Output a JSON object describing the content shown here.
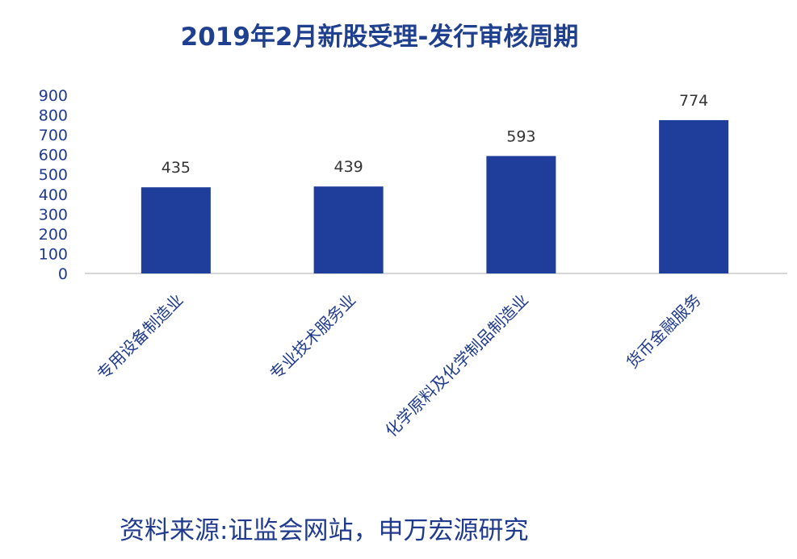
{
  "chart_data": {
    "type": "bar",
    "title": "2019年2月新股受理-发行审核周期",
    "categories": [
      "专用设备制造业",
      "专业技术服务业",
      "化学原料及化学制品制造业",
      "货币金融服务"
    ],
    "values": [
      435,
      439,
      593,
      774
    ],
    "ylim": [
      0,
      900
    ],
    "yticks": [
      0,
      100,
      200,
      300,
      400,
      500,
      600,
      700,
      800,
      900
    ],
    "xlabel": "",
    "ylabel": "",
    "grid": false,
    "legend": "none",
    "data_labels": true,
    "x_label_rotation": "-45deg"
  },
  "source_note": "资料来源:证监会网站，申万宏源研究",
  "colors": {
    "bar": "#1f3d9b",
    "title": "#1f3f8f",
    "axis_text": "#1f3a8f",
    "value_label": "#333333",
    "baseline": "#c8c8c8"
  }
}
